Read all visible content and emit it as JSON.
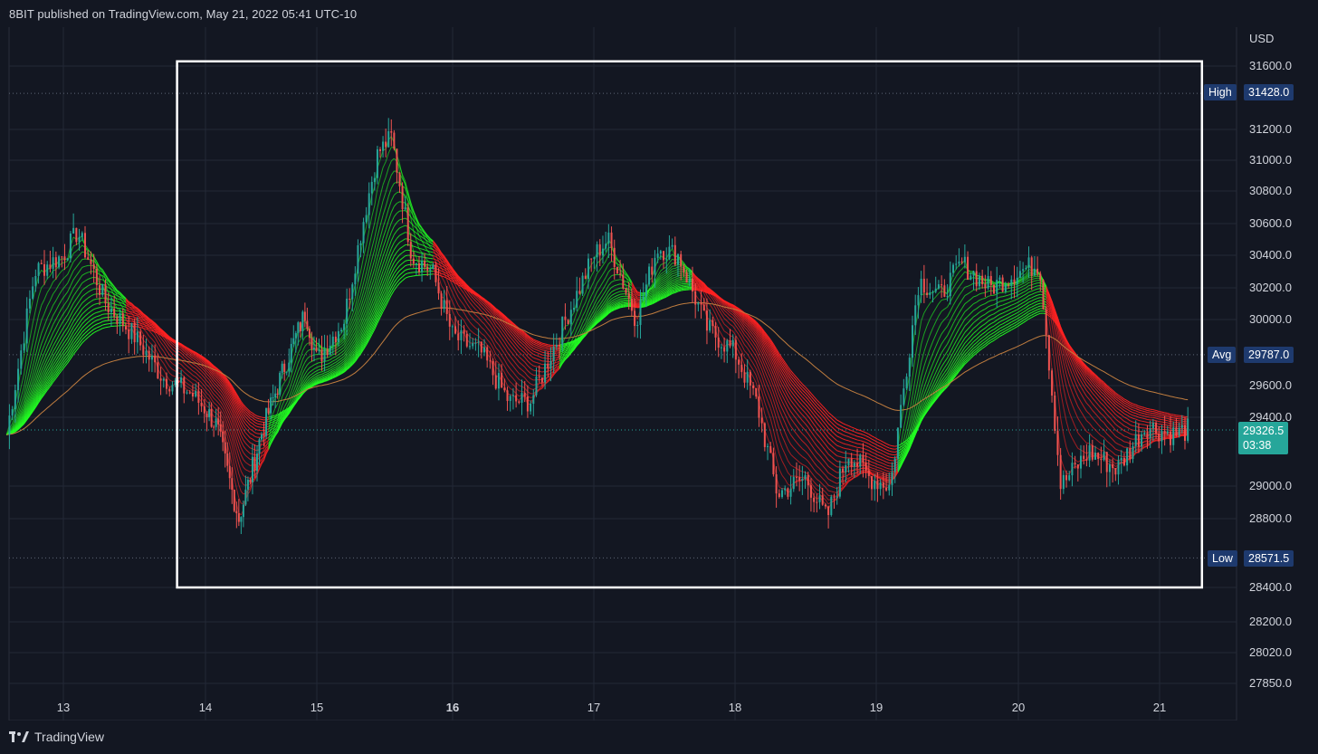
{
  "header": {
    "text": "8BIT published on TradingView.com, May 21, 2022 05:41 UTC-10"
  },
  "footer": {
    "brand": "TradingView"
  },
  "colors": {
    "background": "#131722",
    "grid": "#232936",
    "up_ribbon": "#22ff22",
    "down_ribbon": "#ff2222",
    "ma_line": "#c07d3f",
    "candle_up": "#26a69a",
    "candle_down": "#ef5350",
    "highlight_box": "#ffffff",
    "price_tag": "#26a69a",
    "label_tag": "#1e3a6e"
  },
  "chart_data": {
    "type": "line",
    "symbol_currency": "USD",
    "x_ticks": [
      "13",
      "14",
      "15",
      "16",
      "17",
      "18",
      "19",
      "20",
      "21"
    ],
    "y_ticks": [
      "31600.0",
      "31200.0",
      "31000.0",
      "30800.0",
      "30600.0",
      "30400.0",
      "30200.0",
      "30000.0",
      "29600.0",
      "29400.0",
      "29000.0",
      "28800.0",
      "28400.0",
      "28200.0",
      "28020.0",
      "27850.0"
    ],
    "ylim": [
      27800,
      31800
    ],
    "series": [
      {
        "name": "",
        "x": [
          12.6,
          12.8,
          13.0,
          13.1,
          13.3,
          13.5,
          13.7,
          13.9,
          14.1,
          14.3,
          14.5,
          14.7,
          14.9,
          15.0,
          15.2,
          15.35,
          15.45,
          15.55,
          15.7,
          15.85,
          16.0,
          16.2,
          16.4,
          16.55,
          16.8,
          17.0,
          17.1,
          17.3,
          17.45,
          17.6,
          17.8,
          18.0,
          18.15,
          18.3,
          18.5,
          18.65,
          18.8,
          18.95,
          19.1,
          19.3,
          19.45,
          19.6,
          19.8,
          20.0,
          20.15,
          20.3,
          20.5,
          20.7,
          20.9,
          21.1,
          21.2
        ],
        "y": [
          29300,
          30300,
          30400,
          30550,
          30100,
          29900,
          29650,
          29550,
          29350,
          28800,
          29300,
          29700,
          30050,
          29750,
          30000,
          30650,
          31050,
          31150,
          30400,
          30300,
          29900,
          29800,
          29500,
          29500,
          30000,
          30400,
          30500,
          30000,
          30450,
          30400,
          29950,
          29800,
          29500,
          28950,
          29050,
          28800,
          29200,
          29050,
          29000,
          30250,
          30150,
          30350,
          30200,
          30300,
          30350,
          29000,
          29200,
          29100,
          29350,
          29300,
          29327
        ]
      }
    ],
    "ohlc_summary": {
      "high_label": "High",
      "high": "31428.0",
      "avg_label": "Avg",
      "avg": "29787.0",
      "low_label": "Low",
      "low": "28571.5",
      "last": "29326.5",
      "countdown": "03:38"
    },
    "highlight_range": {
      "x_start": 13.8,
      "x_end": 21.3,
      "y_low": 28400,
      "y_high": 31630
    }
  }
}
